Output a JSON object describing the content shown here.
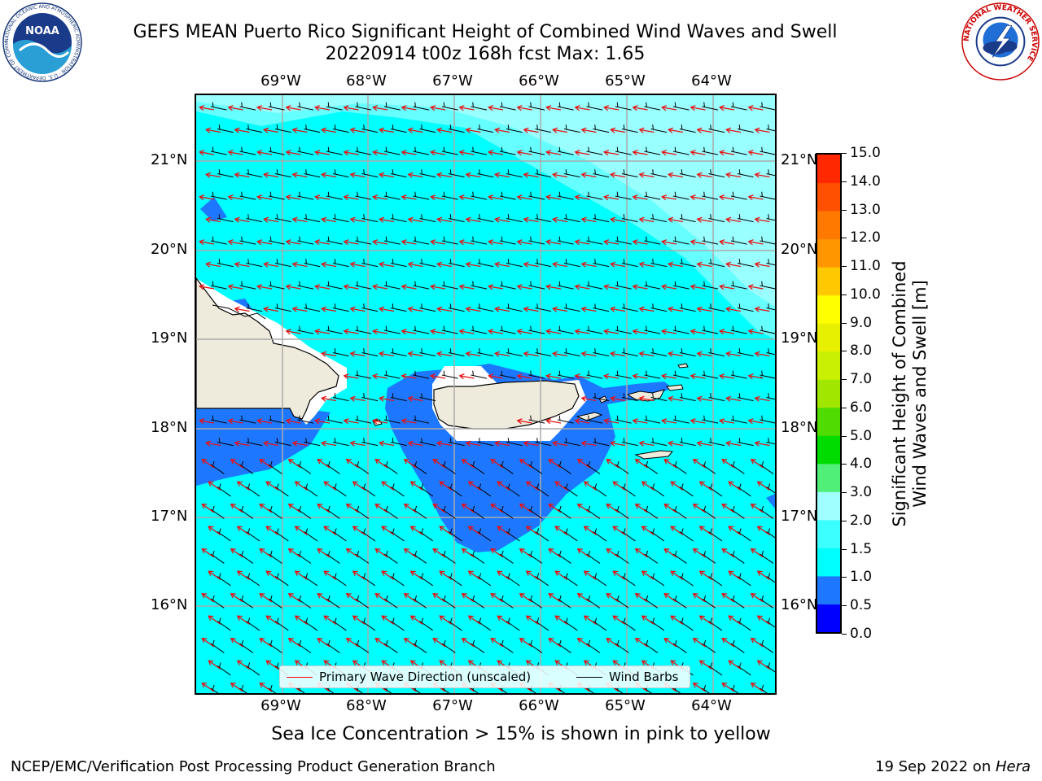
{
  "title": {
    "line1": "GEFS MEAN Puerto Rico Significant Height of Combined Wind Waves and Swell",
    "line2": "20220914 t00z 168h fcst   Max: 1.65"
  },
  "map": {
    "lon_labels": [
      "69°W",
      "68°W",
      "67°W",
      "66°W",
      "65°W",
      "64°W"
    ],
    "lat_labels": [
      "21°N",
      "20°N",
      "19°N",
      "18°N",
      "17°N",
      "16°N"
    ],
    "region": "Puerto Rico"
  },
  "legend": {
    "wave_direction_label": "Primary Wave Direction (unscaled)",
    "wind_barbs_label": "Wind Barbs",
    "wave_direction_color": "#ff0000",
    "wind_barbs_color": "#000000"
  },
  "colorbar": {
    "label_line1": "Significant Height of Combined",
    "label_line2": "Wind Waves and Swell [m]",
    "ticks": [
      "0.0",
      "0.5",
      "1.0",
      "1.5",
      "2.0",
      "3.0",
      "4.0",
      "5.0",
      "6.0",
      "7.0",
      "8.0",
      "9.0",
      "10.0",
      "11.0",
      "12.0",
      "13.0",
      "14.0",
      "15.0"
    ],
    "colors": [
      "#0000ff",
      "#1e78ff",
      "#00ffff",
      "#3cffff",
      "#a0ffff",
      "#50f078",
      "#00dc00",
      "#50dc00",
      "#a0e600",
      "#c8f000",
      "#e6f000",
      "#ffff00",
      "#ffc800",
      "#ff9600",
      "#ff7800",
      "#ff5000",
      "#ff2800",
      "#ff0000"
    ]
  },
  "footnote": "Sea Ice Concentration > 15% is shown in pink to yellow",
  "footer": {
    "left": "NCEP/EMC/Verification Post Processing Product Generation Branch",
    "right_prefix": "19 Sep 2022 on ",
    "right_italic": "Hera"
  },
  "logos": {
    "noaa_text": "NOAA",
    "noaa_ring_text": "NATIONAL OCEANIC AND ATMOSPHERIC ADMINISTRATION · U.S. DEPARTMENT OF COMMERCE",
    "nws_ring_text": "NATIONAL WEATHER SERVICE"
  }
}
